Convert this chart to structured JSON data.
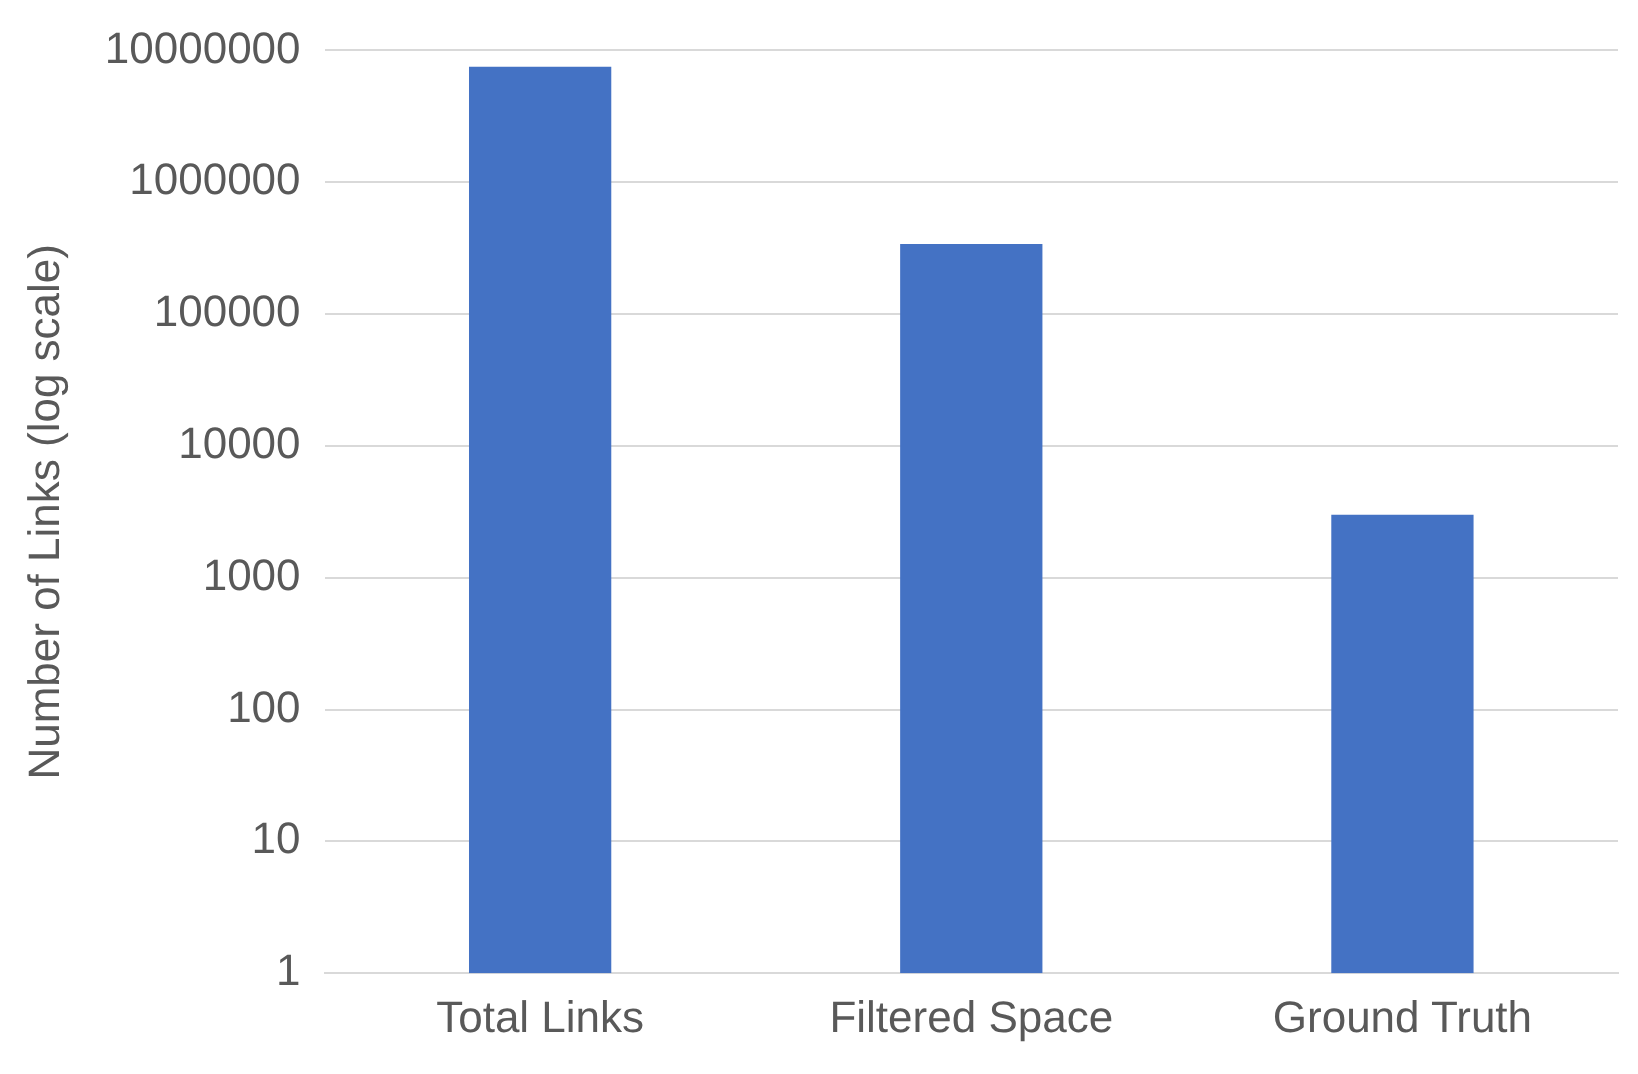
{
  "chart_data": {
    "type": "bar",
    "ylabel": "Number of Links (log scale)",
    "categories": [
      "Total Links",
      "Filtered Space",
      "Ground Truth"
    ],
    "values": [
      7500000,
      340000,
      3000
    ],
    "color": "#4472c4",
    "log": true,
    "ylim": [
      1,
      10000000
    ],
    "yticks": [
      1,
      10,
      100,
      1000,
      10000,
      100000,
      1000000,
      10000000
    ],
    "grid": "y",
    "legend": false
  }
}
